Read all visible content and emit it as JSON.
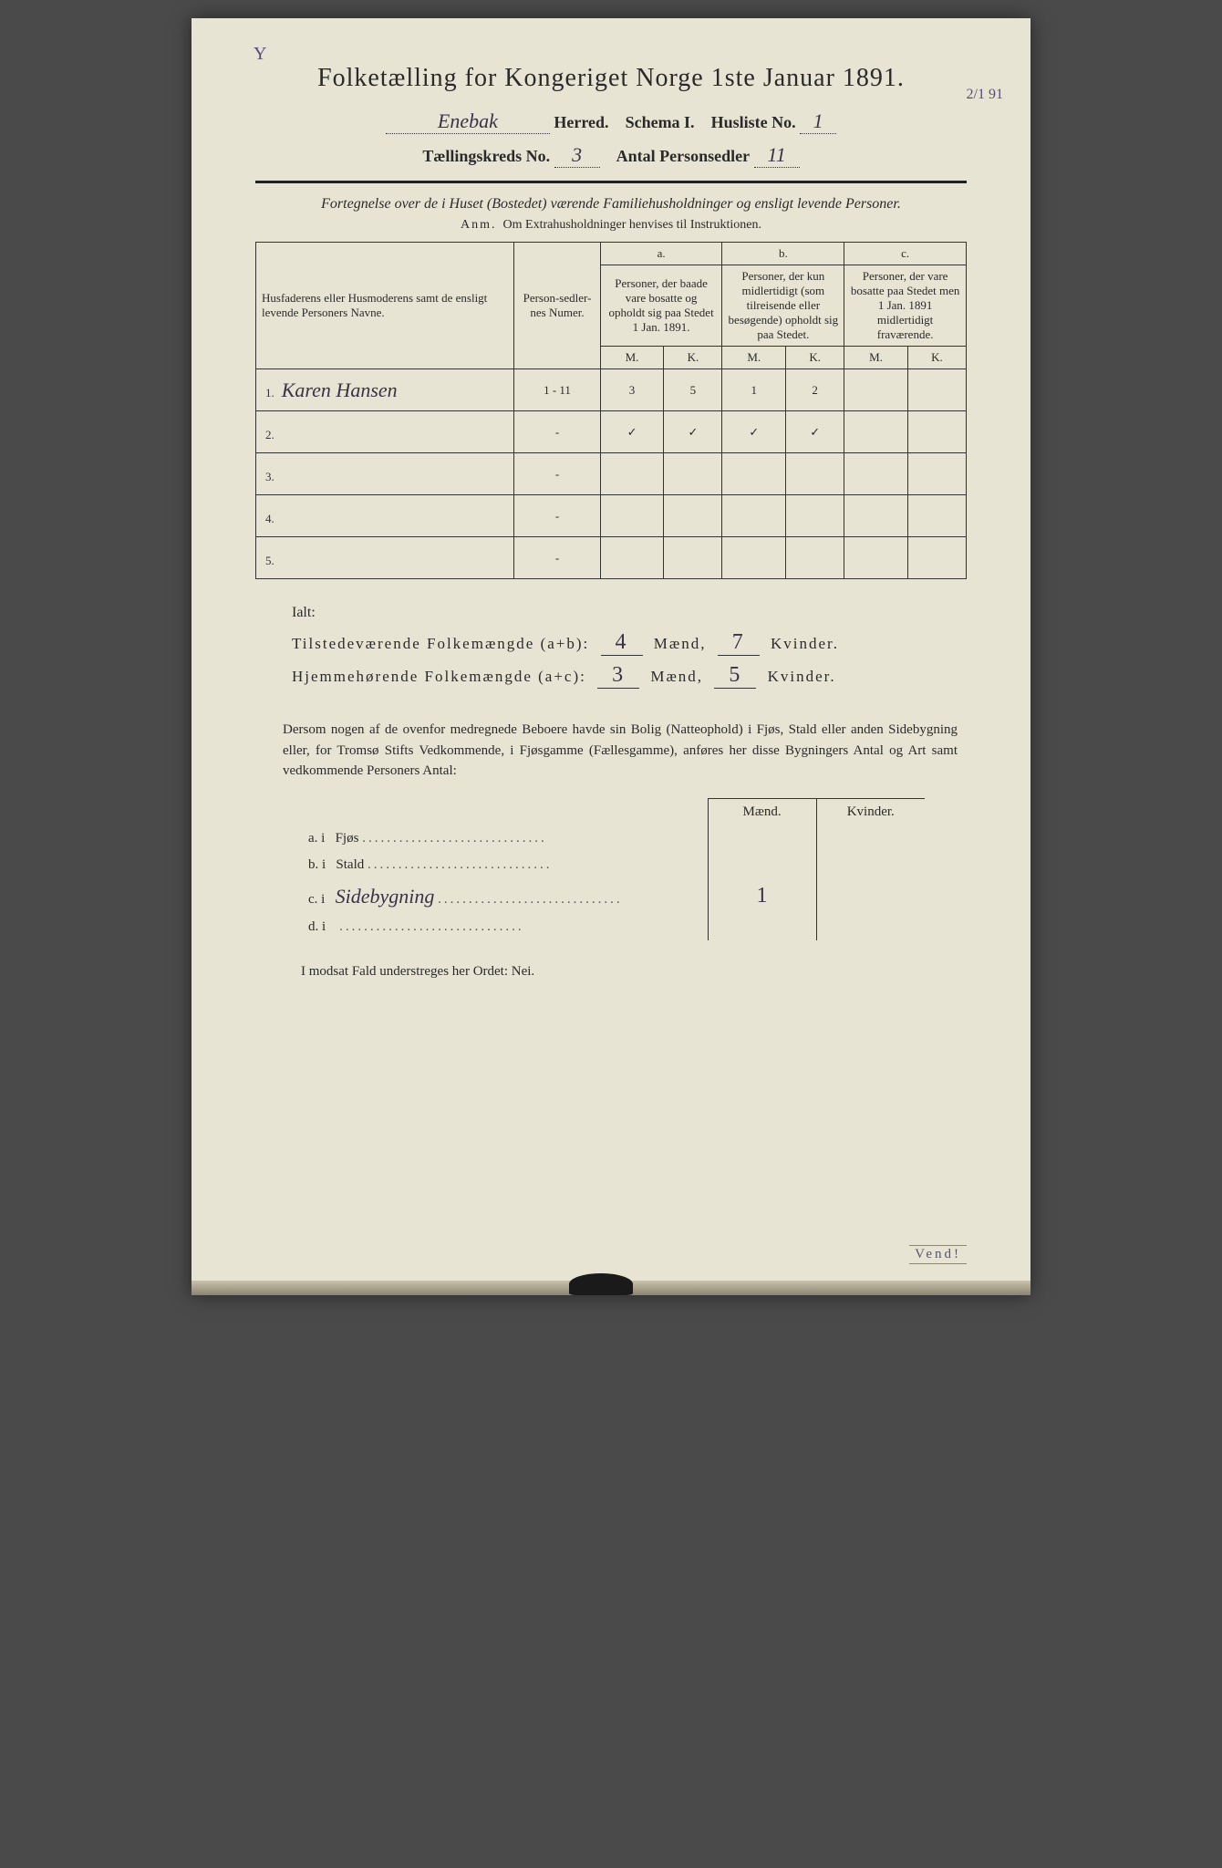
{
  "corner_mark": "Y",
  "side_note": "2/1 91",
  "title": "Folketælling for Kongeriget Norge 1ste Januar 1891.",
  "header": {
    "herred_value": "Enebak",
    "herred_label": "Herred.",
    "schema_label": "Schema I.",
    "husliste_label": "Husliste No.",
    "husliste_value": "1",
    "kreds_label": "Tællingskreds No.",
    "kreds_value": "3",
    "antal_label": "Antal Personsedler",
    "antal_value": "11"
  },
  "intro": "Fortegnelse over de i Huset (Bostedet) værende Familiehusholdninger og ensligt levende Personer.",
  "anm_prefix": "Anm.",
  "anm_text": "Om Extrahusholdninger henvises til Instruktionen.",
  "table": {
    "col_name": "Husfaderens eller Husmoderens samt de ensligt levende Personers Navne.",
    "col_numer": "Person-sedler-nes Numer.",
    "group_a_label": "a.",
    "group_a_text": "Personer, der baade vare bosatte og opholdt sig paa Stedet 1 Jan. 1891.",
    "group_b_label": "b.",
    "group_b_text": "Personer, der kun midlertidigt (som tilreisende eller besøgende) opholdt sig paa Stedet.",
    "group_c_label": "c.",
    "group_c_text": "Personer, der vare bosatte paa Stedet men 1 Jan. 1891 midlertidigt fraværende.",
    "mk_m": "M.",
    "mk_k": "K.",
    "rows": [
      {
        "n": "1.",
        "name": "Karen Hansen",
        "numer": "1 - 11",
        "a_m": "3",
        "a_k": "5",
        "b_m": "1",
        "b_k": "2",
        "c_m": "",
        "c_k": ""
      },
      {
        "n": "2.",
        "name": "",
        "numer": "-",
        "a_m": "✓",
        "a_k": "✓",
        "b_m": "✓",
        "b_k": "✓",
        "c_m": "",
        "c_k": ""
      },
      {
        "n": "3.",
        "name": "",
        "numer": "-",
        "a_m": "",
        "a_k": "",
        "b_m": "",
        "b_k": "",
        "c_m": "",
        "c_k": ""
      },
      {
        "n": "4.",
        "name": "",
        "numer": "-",
        "a_m": "",
        "a_k": "",
        "b_m": "",
        "b_k": "",
        "c_m": "",
        "c_k": ""
      },
      {
        "n": "5.",
        "name": "",
        "numer": "-",
        "a_m": "",
        "a_k": "",
        "b_m": "",
        "b_k": "",
        "c_m": "",
        "c_k": ""
      }
    ]
  },
  "totals": {
    "ialt": "Ialt:",
    "line1_label": "Tilstedeværende Folkemængde (a+b):",
    "line1_m": "4",
    "line1_k": "7",
    "line2_label": "Hjemmehørende Folkemængde (a+c):",
    "line2_m": "3",
    "line2_k": "5",
    "maend": "Mænd,",
    "kvinder": "Kvinder."
  },
  "paragraph": "Dersom nogen af de ovenfor medregnede Beboere havde sin Bolig (Natteophold) i Fjøs, Stald eller anden Sidebygning eller, for Tromsø Stifts Vedkommende, i Fjøsgamme (Fællesgamme), anføres her disse Bygningers Antal og Art samt vedkommende Personers Antal:",
  "sb": {
    "maend": "Mænd.",
    "kvinder": "Kvinder.",
    "rows": [
      {
        "lbl": "a.  i",
        "type": "Fjøs",
        "m": "",
        "k": ""
      },
      {
        "lbl": "b.  i",
        "type": "Stald",
        "m": "",
        "k": ""
      },
      {
        "lbl": "c.  i",
        "type": "Sidebygning",
        "m": "1",
        "k": ""
      },
      {
        "lbl": "d.  i",
        "type": "",
        "m": "",
        "k": ""
      }
    ]
  },
  "footer": "I modsat Fald understreges her Ordet: Nei.",
  "vend": "Vend!"
}
